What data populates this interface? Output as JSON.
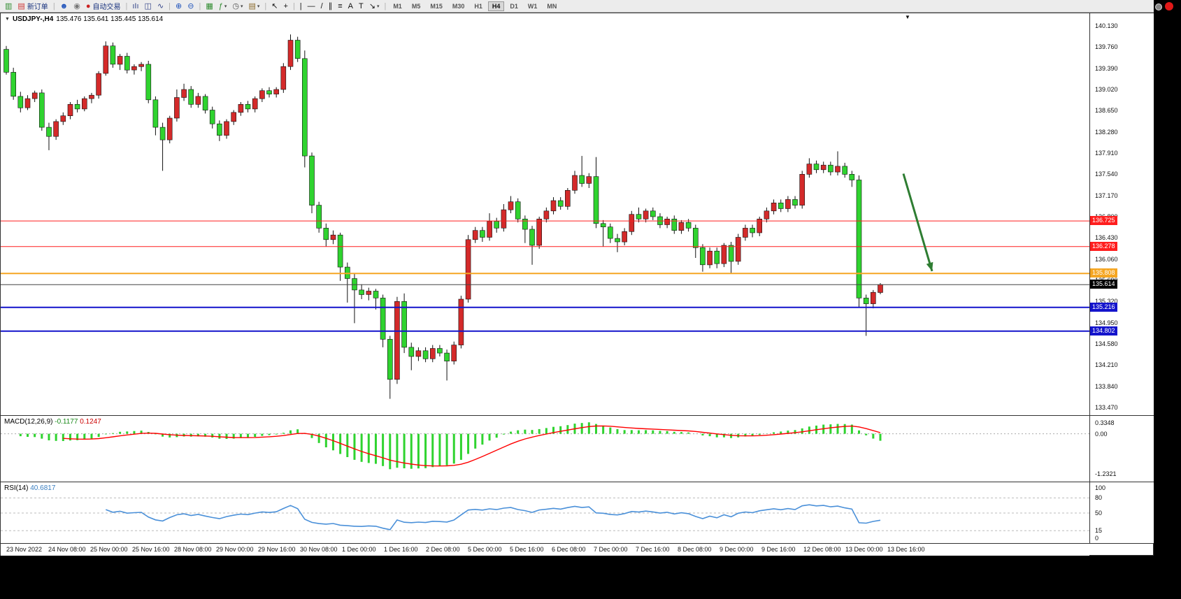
{
  "toolbar": {
    "icons": [
      {
        "name": "new-chart-icon",
        "glyph": "▥",
        "color": "#2e8b2e"
      },
      {
        "name": "new-order-button",
        "glyph": "▤",
        "color": "#cc3333",
        "label": "新订单",
        "label_color": "#18327e"
      },
      {
        "sep": true
      },
      {
        "name": "profiles-icon",
        "glyph": "☻",
        "color": "#2255bb"
      },
      {
        "name": "alerts-icon",
        "glyph": "◉",
        "color": "#777777"
      },
      {
        "name": "autotrading-button",
        "glyph": "●",
        "color": "#cc2222",
        "label": "自动交易",
        "label_color": "#18327e"
      },
      {
        "sep": true
      },
      {
        "name": "bar-chart-icon",
        "glyph": "ıIı",
        "color": "#334488"
      },
      {
        "name": "candlestick-chart-icon",
        "glyph": "◫",
        "color": "#334488"
      },
      {
        "name": "line-chart-icon",
        "glyph": "∿",
        "color": "#334488"
      },
      {
        "sep": true
      },
      {
        "name": "zoom-in-icon",
        "glyph": "⊕",
        "color": "#2255bb"
      },
      {
        "name": "zoom-out-icon",
        "glyph": "⊖",
        "color": "#2255bb"
      },
      {
        "sep": true
      },
      {
        "name": "tile-windows-icon",
        "glyph": "▦",
        "color": "#2e8b2e"
      },
      {
        "name": "indicators-icon",
        "glyph": "ƒ",
        "color": "#2e8b2e",
        "dropdown": true
      },
      {
        "name": "periods-icon",
        "glyph": "◷",
        "color": "#555555",
        "dropdown": true
      },
      {
        "name": "templates-icon",
        "glyph": "▤",
        "color": "#8a6a2a",
        "dropdown": true
      },
      {
        "sep": true
      },
      {
        "name": "cursor-icon",
        "glyph": "↖",
        "color": "#111111"
      },
      {
        "name": "crosshair-icon",
        "glyph": "+",
        "color": "#111111"
      },
      {
        "sep": true
      },
      {
        "name": "vertical-line-icon",
        "glyph": "|",
        "color": "#111111"
      },
      {
        "name": "horizontal-line-icon",
        "glyph": "—",
        "color": "#111111"
      },
      {
        "name": "trendline-icon",
        "glyph": "/",
        "color": "#111111"
      },
      {
        "name": "channel-icon",
        "glyph": "∥",
        "color": "#111111"
      },
      {
        "name": "fibonacci-icon",
        "glyph": "≡",
        "color": "#111111"
      },
      {
        "name": "text-icon",
        "glyph": "A",
        "color": "#111111"
      },
      {
        "name": "text-label-icon",
        "glyph": "T",
        "color": "#111111"
      },
      {
        "name": "arrows-icon",
        "glyph": "↘",
        "color": "#111111",
        "dropdown": true
      }
    ],
    "timeframes": [
      "M1",
      "M5",
      "M15",
      "M30",
      "H1",
      "H4",
      "D1",
      "W1",
      "MN"
    ],
    "active_timeframe": "H4"
  },
  "chart": {
    "symbol_timeframe": "USDJPY-,H4",
    "ohlc_line": "135.476 135.641 135.445 135.614",
    "dropdown_glyph": "▼",
    "shift_marker_glyph": "▼",
    "price_axis_labels": [
      "140.130",
      "139.760",
      "139.390",
      "139.020",
      "138.650",
      "138.280",
      "137.910",
      "137.540",
      "137.170",
      "136.800",
      "136.430",
      "136.060",
      "135.690",
      "135.320",
      "134.950",
      "134.580",
      "134.210",
      "133.840",
      "133.470"
    ],
    "hlines": [
      {
        "name": "resistance-line-1",
        "price": 136.725,
        "label": "136.725",
        "color": "#ff1e1e",
        "width": 1
      },
      {
        "name": "resistance-line-2",
        "price": 136.278,
        "label": "136.278",
        "color": "#ff1e1e",
        "width": 1
      },
      {
        "name": "pivot-line",
        "price": 135.808,
        "label": "135.808",
        "color": "#f5a623",
        "width": 2
      },
      {
        "name": "support-line-1",
        "price": 135.216,
        "label": "135.216",
        "color": "#1414cc",
        "width": 2
      },
      {
        "name": "support-line-2",
        "price": 134.802,
        "label": "134.802",
        "color": "#1414cc",
        "width": 2
      }
    ],
    "current_price": {
      "price": 135.614,
      "label": "135.614",
      "color": "#000000"
    }
  },
  "macd": {
    "label": "MACD(12,26,9)",
    "value_main": "-0.1177",
    "value_signal": "0.1247",
    "axis_labels": [
      "0.3348",
      "0.00",
      "-1.2321"
    ],
    "axis_values": [
      0.3348,
      0,
      -1.2321
    ],
    "hist_color": "#2fd32f",
    "signal_color": "#ff0000"
  },
  "rsi": {
    "label": "RSI(14)",
    "value": "40.6817",
    "axis_labels": [
      "100",
      "80",
      "50",
      "15",
      "0"
    ],
    "axis_values": [
      100,
      80,
      50,
      15,
      0
    ],
    "levels": [
      80,
      50,
      15
    ],
    "line_color": "#4a90d9"
  },
  "time_axis": [
    "23 Nov 2022",
    "24 Nov 08:00",
    "25 Nov 00:00",
    "25 Nov 16:00",
    "28 Nov 08:00",
    "29 Nov 00:00",
    "29 Nov 16:00",
    "30 Nov 08:00",
    "1 Dec 00:00",
    "1 Dec 16:00",
    "2 Dec 08:00",
    "5 Dec 00:00",
    "5 Dec 16:00",
    "6 Dec 08:00",
    "7 Dec 00:00",
    "7 Dec 16:00",
    "8 Dec 08:00",
    "9 Dec 00:00",
    "9 Dec 16:00",
    "12 Dec 08:00",
    "13 Dec 00:00",
    "13 Dec 16:00"
  ],
  "chart_data": {
    "type": "candlestick",
    "symbol": "USDJPY",
    "timeframe": "H4",
    "up_color": "#d42a2a",
    "down_color": "#2fd32f",
    "wick_color": "#111111",
    "price_range": [
      133.45,
      140.35
    ],
    "candles": [
      [
        139.72,
        139.78,
        139.28,
        139.32
      ],
      [
        139.32,
        139.4,
        138.84,
        138.9
      ],
      [
        138.9,
        138.98,
        138.62,
        138.7
      ],
      [
        138.7,
        138.92,
        138.66,
        138.86
      ],
      [
        138.86,
        139.0,
        138.8,
        138.96
      ],
      [
        138.96,
        139.02,
        138.3,
        138.36
      ],
      [
        138.36,
        138.44,
        137.96,
        138.2
      ],
      [
        138.2,
        138.5,
        138.14,
        138.46
      ],
      [
        138.46,
        138.62,
        138.4,
        138.56
      ],
      [
        138.56,
        138.8,
        138.5,
        138.76
      ],
      [
        138.76,
        138.84,
        138.62,
        138.68
      ],
      [
        138.68,
        138.9,
        138.64,
        138.86
      ],
      [
        138.86,
        138.96,
        138.78,
        138.92
      ],
      [
        138.92,
        139.34,
        138.86,
        139.3
      ],
      [
        139.3,
        139.86,
        139.26,
        139.78
      ],
      [
        139.78,
        139.84,
        139.4,
        139.46
      ],
      [
        139.46,
        139.64,
        139.36,
        139.6
      ],
      [
        139.6,
        139.66,
        139.3,
        139.36
      ],
      [
        139.36,
        139.46,
        139.28,
        139.42
      ],
      [
        139.42,
        139.5,
        139.34,
        139.46
      ],
      [
        139.46,
        139.52,
        138.78,
        138.84
      ],
      [
        138.84,
        138.9,
        138.22,
        138.36
      ],
      [
        138.36,
        138.44,
        137.6,
        138.14
      ],
      [
        138.14,
        138.56,
        138.08,
        138.52
      ],
      [
        138.52,
        139.02,
        138.46,
        138.88
      ],
      [
        138.88,
        139.12,
        138.82,
        139.02
      ],
      [
        139.02,
        139.08,
        138.7,
        138.76
      ],
      [
        138.76,
        138.96,
        138.7,
        138.9
      ],
      [
        138.9,
        138.94,
        138.6,
        138.66
      ],
      [
        138.66,
        138.72,
        138.34,
        138.42
      ],
      [
        138.42,
        138.48,
        138.12,
        138.22
      ],
      [
        138.22,
        138.5,
        138.16,
        138.46
      ],
      [
        138.46,
        138.66,
        138.4,
        138.62
      ],
      [
        138.62,
        138.8,
        138.56,
        138.76
      ],
      [
        138.76,
        138.82,
        138.62,
        138.68
      ],
      [
        138.68,
        138.9,
        138.62,
        138.86
      ],
      [
        138.86,
        139.04,
        138.8,
        139.0
      ],
      [
        139.0,
        139.06,
        138.88,
        138.94
      ],
      [
        138.94,
        139.06,
        138.88,
        139.02
      ],
      [
        139.02,
        139.48,
        138.96,
        139.42
      ],
      [
        139.42,
        139.98,
        139.36,
        139.88
      ],
      [
        139.88,
        139.94,
        139.5,
        139.56
      ],
      [
        139.56,
        139.7,
        137.66,
        137.86
      ],
      [
        137.86,
        137.92,
        136.86,
        137.0
      ],
      [
        137.0,
        137.06,
        136.52,
        136.6
      ],
      [
        136.6,
        136.68,
        136.28,
        136.4
      ],
      [
        136.4,
        136.56,
        136.32,
        136.48
      ],
      [
        136.48,
        136.52,
        135.68,
        135.92
      ],
      [
        135.92,
        136.0,
        135.3,
        135.72
      ],
      [
        135.72,
        135.8,
        134.94,
        135.52
      ],
      [
        135.52,
        135.62,
        135.36,
        135.44
      ],
      [
        135.44,
        135.56,
        135.34,
        135.5
      ],
      [
        135.5,
        135.54,
        135.18,
        135.38
      ],
      [
        135.38,
        135.44,
        134.52,
        134.66
      ],
      [
        134.66,
        134.72,
        133.62,
        133.96
      ],
      [
        133.96,
        135.4,
        133.88,
        135.32
      ],
      [
        135.32,
        135.46,
        134.42,
        134.52
      ],
      [
        134.52,
        134.6,
        134.12,
        134.36
      ],
      [
        134.36,
        134.52,
        134.28,
        134.46
      ],
      [
        134.46,
        134.52,
        134.26,
        134.32
      ],
      [
        134.32,
        134.56,
        134.26,
        134.5
      ],
      [
        134.5,
        134.56,
        134.36,
        134.42
      ],
      [
        134.42,
        134.48,
        133.94,
        134.28
      ],
      [
        134.28,
        134.62,
        134.22,
        134.56
      ],
      [
        134.56,
        135.42,
        134.5,
        135.36
      ],
      [
        135.36,
        136.48,
        135.3,
        136.4
      ],
      [
        136.4,
        136.62,
        136.34,
        136.56
      ],
      [
        136.56,
        136.62,
        136.36,
        136.44
      ],
      [
        136.44,
        136.86,
        136.38,
        136.72
      ],
      [
        136.72,
        136.78,
        136.52,
        136.6
      ],
      [
        136.6,
        137.02,
        136.54,
        136.92
      ],
      [
        136.92,
        137.16,
        136.86,
        137.06
      ],
      [
        137.06,
        137.12,
        136.7,
        136.76
      ],
      [
        136.76,
        136.82,
        136.34,
        136.58
      ],
      [
        136.58,
        136.64,
        135.96,
        136.3
      ],
      [
        136.3,
        136.8,
        136.24,
        136.76
      ],
      [
        136.76,
        136.96,
        136.7,
        136.9
      ],
      [
        136.9,
        137.14,
        136.84,
        137.08
      ],
      [
        137.08,
        137.14,
        136.92,
        136.98
      ],
      [
        136.98,
        137.3,
        136.92,
        137.26
      ],
      [
        137.26,
        137.6,
        137.2,
        137.52
      ],
      [
        137.52,
        137.86,
        137.32,
        137.38
      ],
      [
        137.38,
        137.56,
        137.3,
        137.5
      ],
      [
        137.5,
        137.84,
        136.6,
        136.68
      ],
      [
        136.68,
        136.74,
        136.28,
        136.62
      ],
      [
        136.62,
        136.68,
        136.34,
        136.42
      ],
      [
        136.42,
        136.5,
        136.18,
        136.36
      ],
      [
        136.36,
        136.6,
        136.3,
        136.54
      ],
      [
        136.54,
        136.9,
        136.48,
        136.84
      ],
      [
        136.84,
        136.96,
        136.7,
        136.76
      ],
      [
        136.76,
        136.94,
        136.7,
        136.9
      ],
      [
        136.9,
        136.96,
        136.74,
        136.8
      ],
      [
        136.8,
        136.86,
        136.6,
        136.66
      ],
      [
        136.66,
        136.8,
        136.6,
        136.76
      ],
      [
        136.76,
        136.82,
        136.5,
        136.56
      ],
      [
        136.56,
        136.74,
        136.5,
        136.7
      ],
      [
        136.7,
        136.76,
        136.54,
        136.6
      ],
      [
        136.6,
        136.66,
        136.08,
        136.26
      ],
      [
        136.26,
        136.32,
        135.84,
        135.96
      ],
      [
        135.96,
        136.26,
        135.9,
        136.2
      ],
      [
        136.2,
        136.26,
        135.9,
        135.98
      ],
      [
        135.98,
        136.34,
        135.92,
        136.3
      ],
      [
        136.3,
        136.36,
        135.8,
        136.02
      ],
      [
        136.02,
        136.5,
        135.96,
        136.44
      ],
      [
        136.44,
        136.66,
        136.38,
        136.6
      ],
      [
        136.6,
        136.66,
        136.44,
        136.52
      ],
      [
        136.52,
        136.8,
        136.46,
        136.76
      ],
      [
        136.76,
        136.96,
        136.7,
        136.9
      ],
      [
        136.9,
        137.1,
        136.84,
        137.04
      ],
      [
        137.04,
        137.1,
        136.88,
        136.94
      ],
      [
        136.94,
        137.16,
        136.88,
        137.1
      ],
      [
        137.1,
        137.16,
        136.94,
        137.0
      ],
      [
        137.0,
        137.6,
        136.94,
        137.54
      ],
      [
        137.54,
        137.82,
        137.48,
        137.72
      ],
      [
        137.72,
        137.78,
        137.56,
        137.62
      ],
      [
        137.62,
        137.76,
        137.56,
        137.7
      ],
      [
        137.7,
        137.76,
        137.52,
        137.58
      ],
      [
        137.58,
        137.94,
        137.52,
        137.68
      ],
      [
        137.68,
        137.74,
        137.48,
        137.54
      ],
      [
        137.54,
        137.6,
        137.32,
        137.44
      ],
      [
        137.44,
        137.52,
        135.22,
        135.38
      ],
      [
        135.38,
        135.44,
        134.72,
        135.28
      ],
      [
        135.28,
        135.52,
        135.2,
        135.48
      ],
      [
        135.476,
        135.641,
        135.445,
        135.614
      ]
    ],
    "annotations": [
      {
        "type": "arrow",
        "color": "#2e7d32",
        "from_price": 137.55,
        "to_price": 135.85
      }
    ]
  }
}
